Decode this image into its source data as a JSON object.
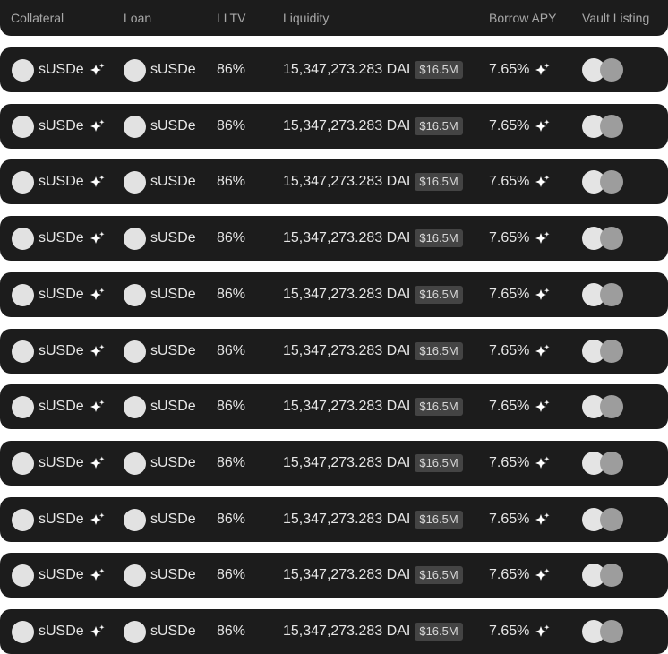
{
  "header": {
    "collateral": "Collateral",
    "loan": "Loan",
    "lltv": "LLTV",
    "liquidity": "Liquidity",
    "borrow_apy": "Borrow APY",
    "vault_listing": "Vault Listing"
  },
  "icons": {
    "token": "token-circle-icon",
    "reward": "sparkles-icon",
    "vault": "vault-avatars-icon"
  },
  "colors": {
    "row_background": "#1c1c1c",
    "text": "#e6e6e6",
    "header_text": "#a8a8a8",
    "badge_background": "#444444"
  },
  "rows": [
    {
      "collateral": "sUSDe",
      "loan": "sUSDe",
      "lltv": "86%",
      "liquidity": "15,347,273.283 DAI",
      "liquidity_usd": "$16.5M",
      "borrow_apy": "7.65%"
    },
    {
      "collateral": "sUSDe",
      "loan": "sUSDe",
      "lltv": "86%",
      "liquidity": "15,347,273.283 DAI",
      "liquidity_usd": "$16.5M",
      "borrow_apy": "7.65%"
    },
    {
      "collateral": "sUSDe",
      "loan": "sUSDe",
      "lltv": "86%",
      "liquidity": "15,347,273.283 DAI",
      "liquidity_usd": "$16.5M",
      "borrow_apy": "7.65%"
    },
    {
      "collateral": "sUSDe",
      "loan": "sUSDe",
      "lltv": "86%",
      "liquidity": "15,347,273.283 DAI",
      "liquidity_usd": "$16.5M",
      "borrow_apy": "7.65%"
    },
    {
      "collateral": "sUSDe",
      "loan": "sUSDe",
      "lltv": "86%",
      "liquidity": "15,347,273.283 DAI",
      "liquidity_usd": "$16.5M",
      "borrow_apy": "7.65%"
    },
    {
      "collateral": "sUSDe",
      "loan": "sUSDe",
      "lltv": "86%",
      "liquidity": "15,347,273.283 DAI",
      "liquidity_usd": "$16.5M",
      "borrow_apy": "7.65%"
    },
    {
      "collateral": "sUSDe",
      "loan": "sUSDe",
      "lltv": "86%",
      "liquidity": "15,347,273.283 DAI",
      "liquidity_usd": "$16.5M",
      "borrow_apy": "7.65%"
    },
    {
      "collateral": "sUSDe",
      "loan": "sUSDe",
      "lltv": "86%",
      "liquidity": "15,347,273.283 DAI",
      "liquidity_usd": "$16.5M",
      "borrow_apy": "7.65%"
    },
    {
      "collateral": "sUSDe",
      "loan": "sUSDe",
      "lltv": "86%",
      "liquidity": "15,347,273.283 DAI",
      "liquidity_usd": "$16.5M",
      "borrow_apy": "7.65%"
    },
    {
      "collateral": "sUSDe",
      "loan": "sUSDe",
      "lltv": "86%",
      "liquidity": "15,347,273.283 DAI",
      "liquidity_usd": "$16.5M",
      "borrow_apy": "7.65%"
    },
    {
      "collateral": "sUSDe",
      "loan": "sUSDe",
      "lltv": "86%",
      "liquidity": "15,347,273.283 DAI",
      "liquidity_usd": "$16.5M",
      "borrow_apy": "7.65%"
    }
  ]
}
